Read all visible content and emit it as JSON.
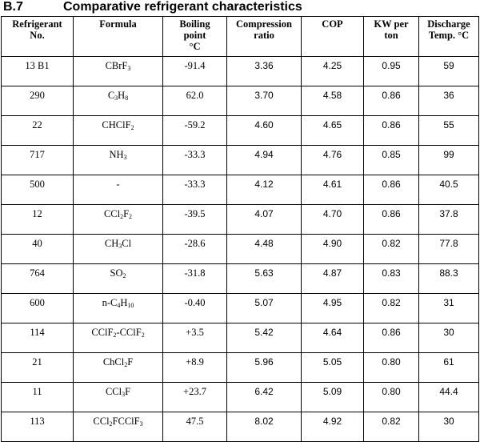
{
  "section": {
    "number": "B.7",
    "title": "Comparative refrigerant characteristics"
  },
  "table": {
    "headers": [
      [
        "Refrigerant",
        "No."
      ],
      [
        "Formula"
      ],
      [
        "Boiling",
        "point",
        "°C"
      ],
      [
        "Compression",
        "ratio"
      ],
      [
        "COP"
      ],
      [
        "KW per",
        "ton"
      ],
      [
        "Discharge",
        "Temp. °C"
      ]
    ],
    "rows": [
      {
        "no": "13 B1",
        "formula": [
          [
            "CBrF",
            ""
          ],
          [
            "3",
            "sub"
          ]
        ],
        "bp": "-91.4",
        "cr": "3.36",
        "cop": "4.25",
        "kw": "0.95",
        "dt": "59"
      },
      {
        "no": "290",
        "formula": [
          [
            "C",
            ""
          ],
          [
            "3",
            "sub"
          ],
          [
            "H",
            ""
          ],
          [
            "8",
            "sub"
          ]
        ],
        "bp": "62.0",
        "cr": "3.70",
        "cop": "4.58",
        "kw": "0.86",
        "dt": "36"
      },
      {
        "no": "22",
        "formula": [
          [
            "CHClF",
            ""
          ],
          [
            "2",
            "sub"
          ]
        ],
        "bp": "-59.2",
        "cr": "4.60",
        "cop": "4.65",
        "kw": "0.86",
        "dt": "55"
      },
      {
        "no": "717",
        "formula": [
          [
            "NH",
            ""
          ],
          [
            "3",
            "sub"
          ]
        ],
        "bp": "-33.3",
        "cr": "4.94",
        "cop": "4.76",
        "kw": "0.85",
        "dt": "99"
      },
      {
        "no": "500",
        "formula": [
          [
            "-",
            ""
          ]
        ],
        "bp": "-33.3",
        "cr": "4.12",
        "cop": "4.61",
        "kw": "0.86",
        "dt": "40.5"
      },
      {
        "no": "12",
        "formula": [
          [
            "CCl",
            ""
          ],
          [
            "2",
            "sub"
          ],
          [
            "F",
            ""
          ],
          [
            "2",
            "sub"
          ]
        ],
        "bp": "-39.5",
        "cr": "4.07",
        "cop": "4.70",
        "kw": "0.86",
        "dt": "37.8"
      },
      {
        "no": "40",
        "formula": [
          [
            "CH",
            ""
          ],
          [
            "3",
            "sub"
          ],
          [
            "Cl",
            ""
          ]
        ],
        "bp": "-28.6",
        "cr": "4.48",
        "cop": "4.90",
        "kw": "0.82",
        "dt": "77.8"
      },
      {
        "no": "764",
        "formula": [
          [
            "SO",
            ""
          ],
          [
            "2",
            "sub"
          ]
        ],
        "bp": "-31.8",
        "cr": "5.63",
        "cop": "4.87",
        "kw": "0.83",
        "dt": "88.3"
      },
      {
        "no": "600",
        "formula": [
          [
            "n-C",
            ""
          ],
          [
            "4",
            "sub"
          ],
          [
            "H",
            ""
          ],
          [
            "10",
            "sub"
          ]
        ],
        "bp": "-0.40",
        "cr": "5.07",
        "cop": "4.95",
        "kw": "0.82",
        "dt": "31"
      },
      {
        "no": "114",
        "formula": [
          [
            "CClF",
            ""
          ],
          [
            "2",
            "sub"
          ],
          [
            "-CClF",
            ""
          ],
          [
            "2",
            "sub"
          ]
        ],
        "bp": "+3.5",
        "cr": "5.42",
        "cop": "4.64",
        "kw": "0.86",
        "dt": "30"
      },
      {
        "no": "21",
        "formula": [
          [
            "ChCl",
            ""
          ],
          [
            "2",
            "sub"
          ],
          [
            "F",
            ""
          ]
        ],
        "bp": "+8.9",
        "cr": "5.96",
        "cop": "5.05",
        "kw": "0.80",
        "dt": "61"
      },
      {
        "no": "11",
        "formula": [
          [
            "CCl",
            ""
          ],
          [
            "3",
            "sub"
          ],
          [
            "F",
            ""
          ]
        ],
        "bp": "+23.7",
        "cr": "6.42",
        "cop": "5.09",
        "kw": "0.80",
        "dt": "44.4"
      },
      {
        "no": "113",
        "formula": [
          [
            "CCl",
            ""
          ],
          [
            "2",
            "sub"
          ],
          [
            "FCClF",
            ""
          ],
          [
            "3",
            "sub"
          ]
        ],
        "bp": "47.5",
        "cr": "8.02",
        "cop": "4.92",
        "kw": "0.82",
        "dt": "30"
      }
    ]
  }
}
